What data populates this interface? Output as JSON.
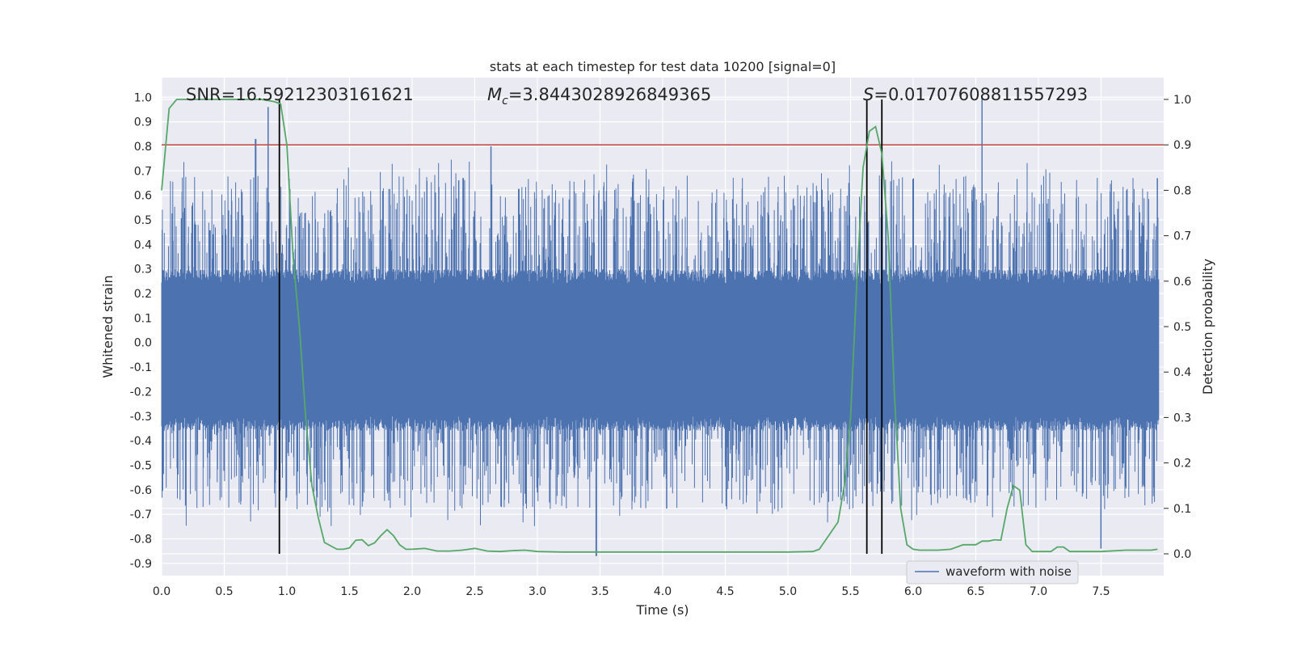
{
  "chart_data": {
    "type": "line",
    "title": "stats at each timestep for test data 10200 [signal=0]",
    "xlabel": "Time (s)",
    "ylabel": "Whitened strain",
    "y2label": "Detection probability",
    "xlim": [
      0.0,
      8.0
    ],
    "ylim": [
      -0.95,
      1.08
    ],
    "y2lim": [
      -0.048,
      1.048
    ],
    "x_ticks": [
      "0.0",
      "0.5",
      "1.0",
      "1.5",
      "2.0",
      "2.5",
      "3.0",
      "3.5",
      "4.0",
      "4.5",
      "5.0",
      "5.5",
      "6.0",
      "6.5",
      "7.0",
      "7.5"
    ],
    "y_ticks": [
      "1.0",
      "0.9",
      "0.8",
      "0.7",
      "0.6",
      "0.5",
      "0.4",
      "0.3",
      "0.2",
      "0.1",
      "0.0",
      "-0.1",
      "-0.2",
      "-0.3",
      "-0.4",
      "-0.5",
      "-0.6",
      "-0.7",
      "-0.8",
      "-0.9"
    ],
    "y2_ticks": [
      "1.0",
      "0.9",
      "0.8",
      "0.7",
      "0.6",
      "0.5",
      "0.4",
      "0.3",
      "0.2",
      "0.1",
      "0.0"
    ],
    "annotations": {
      "snr": "SNR=16.59212303161621",
      "mc_symbol": "M",
      "mc_sub": "c",
      "mc_value": "=3.8443028926849365",
      "s_symbol": "S",
      "s_value": "=0.017076088115572 93"
    },
    "threshold_probability": 0.9,
    "vertical_markers_s": [
      0.94,
      5.63,
      5.75
    ],
    "legend": {
      "label": "waveform with noise",
      "position": "lower right"
    },
    "series": [
      {
        "name": "waveform with noise",
        "color": "#4c72b0",
        "envelope": "dense noise, core band about -0.3 to 0.25, spikes to about +1.0 and -0.87",
        "notable_spikes": [
          [
            0.85,
            0.96
          ],
          [
            0.75,
            0.83
          ],
          [
            2.63,
            0.8
          ],
          [
            6.55,
            1.0
          ],
          [
            3.47,
            -0.87
          ],
          [
            7.5,
            -0.84
          ],
          [
            7.95,
            0.67
          ]
        ]
      },
      {
        "name": "detection probability",
        "color": "#55a868",
        "axis": "right",
        "x": [
          0.0,
          0.06,
          0.12,
          0.2,
          0.3,
          0.4,
          0.5,
          0.6,
          0.7,
          0.8,
          0.9,
          0.95,
          1.0,
          1.05,
          1.1,
          1.15,
          1.2,
          1.25,
          1.3,
          1.4,
          1.45,
          1.5,
          1.55,
          1.6,
          1.65,
          1.7,
          1.75,
          1.8,
          1.85,
          1.9,
          1.95,
          2.0,
          2.1,
          2.2,
          2.3,
          2.4,
          2.5,
          2.6,
          2.7,
          2.8,
          2.9,
          3.0,
          3.2,
          3.5,
          3.8,
          4.0,
          4.3,
          4.6,
          4.8,
          5.0,
          5.2,
          5.25,
          5.3,
          5.35,
          5.4,
          5.45,
          5.5,
          5.55,
          5.6,
          5.65,
          5.7,
          5.75,
          5.8,
          5.85,
          5.9,
          5.95,
          6.0,
          6.05,
          6.1,
          6.2,
          6.3,
          6.4,
          6.5,
          6.55,
          6.6,
          6.65,
          6.7,
          6.75,
          6.8,
          6.85,
          6.9,
          6.95,
          7.0,
          7.1,
          7.15,
          7.2,
          7.25,
          7.3,
          7.5,
          7.7,
          7.9,
          7.95
        ],
        "values": [
          0.8,
          0.98,
          1.0,
          1.0,
          1.0,
          1.0,
          1.0,
          1.0,
          1.0,
          1.0,
          0.995,
          0.99,
          0.9,
          0.65,
          0.5,
          0.3,
          0.15,
          0.08,
          0.025,
          0.01,
          0.01,
          0.013,
          0.03,
          0.031,
          0.018,
          0.024,
          0.04,
          0.053,
          0.04,
          0.02,
          0.01,
          0.01,
          0.012,
          0.006,
          0.006,
          0.008,
          0.012,
          0.006,
          0.005,
          0.007,
          0.008,
          0.005,
          0.004,
          0.004,
          0.004,
          0.004,
          0.004,
          0.004,
          0.004,
          0.004,
          0.005,
          0.01,
          0.03,
          0.05,
          0.07,
          0.15,
          0.3,
          0.6,
          0.85,
          0.93,
          0.94,
          0.88,
          0.7,
          0.35,
          0.1,
          0.02,
          0.01,
          0.008,
          0.008,
          0.008,
          0.01,
          0.02,
          0.02,
          0.028,
          0.028,
          0.031,
          0.03,
          0.1,
          0.15,
          0.14,
          0.02,
          0.005,
          0.005,
          0.005,
          0.015,
          0.015,
          0.005,
          0.005,
          0.005,
          0.008,
          0.008,
          0.01
        ]
      }
    ]
  }
}
